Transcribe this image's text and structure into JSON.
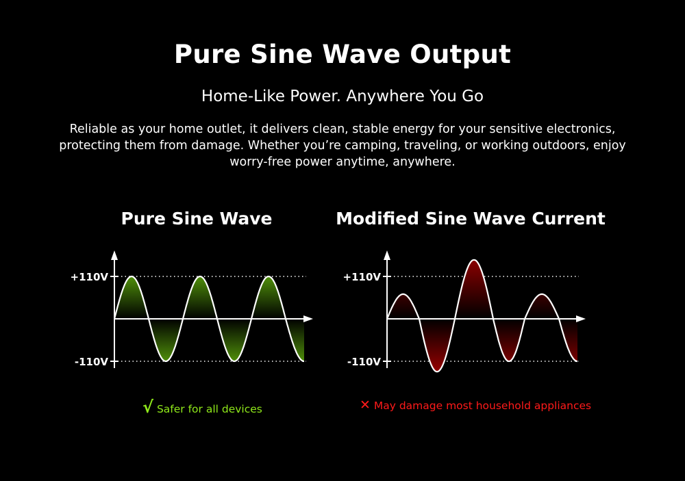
{
  "header": {
    "title": "Pure Sine Wave Output",
    "subtitle": "Home-Like Power. Anywhere You Go",
    "description": [
      "Reliable as your home outlet, it delivers clean, stable energy for your sensitive electronics,",
      "protecting them from damage. Whether you’re camping, traveling, or working outdoors, enjoy",
      "worry-free power anytime, anywhere."
    ]
  },
  "colors": {
    "pure_fill": "#4f8f0a",
    "modified_fill": "#8a0000",
    "good": "#8fe81a",
    "bad": "#ff1a1a"
  },
  "chart_data": [
    {
      "type": "line",
      "title": "Pure Sine Wave",
      "y_ticks": [
        "+110V",
        "-110V"
      ],
      "ylim": [
        -110,
        110
      ],
      "half_cycle_peaks_v": [
        110,
        -110,
        110,
        -110,
        110,
        -110
      ],
      "caption": {
        "icon": "check-icon",
        "symbol": "√",
        "text": "Safer for all devices"
      }
    },
    {
      "type": "line",
      "title": "Modified Sine Wave Current",
      "y_ticks": [
        "+110V",
        "-110V"
      ],
      "ylim": [
        -110,
        110
      ],
      "half_cycle_peaks_v": [
        64,
        -137,
        153,
        -110,
        64,
        -110
      ],
      "caption": {
        "icon": "cross-icon",
        "symbol": "✕",
        "text": "May damage most household appliances"
      }
    }
  ]
}
